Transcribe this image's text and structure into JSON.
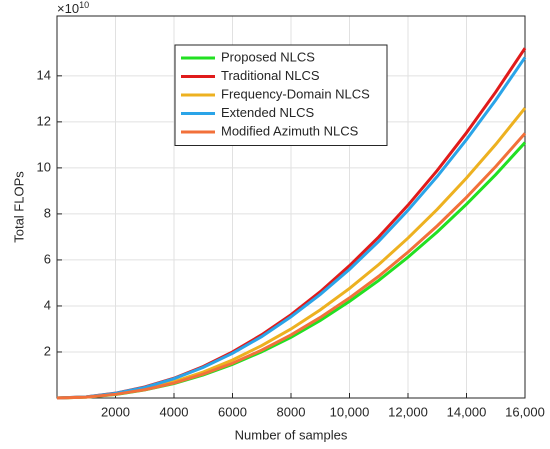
{
  "chart_data": {
    "type": "line",
    "y_multiplier": {
      "base": "×10",
      "exponent": "10"
    },
    "xlabel": "Number of samples",
    "ylabel": "Total FLOPs",
    "x": [
      0,
      1000,
      2000,
      3000,
      4000,
      5000,
      6000,
      7000,
      8000,
      9000,
      10000,
      11000,
      12000,
      13000,
      14000,
      15000,
      16000
    ],
    "series": [
      {
        "name": "Proposed NLCS",
        "color": "#22e022",
        "values": [
          0,
          0.04,
          0.15,
          0.35,
          0.63,
          1.0,
          1.46,
          2.01,
          2.64,
          3.37,
          4.2,
          5.11,
          6.12,
          7.22,
          8.42,
          9.71,
          11.1
        ]
      },
      {
        "name": "Traditional NLCS",
        "color": "#e01b1b",
        "values": [
          0,
          0.05,
          0.21,
          0.48,
          0.86,
          1.37,
          2.0,
          2.75,
          3.62,
          4.62,
          5.75,
          7.0,
          8.38,
          9.89,
          11.53,
          13.3,
          15.2
        ]
      },
      {
        "name": "Frequency-Domain NLCS",
        "color": "#edb120",
        "values": [
          0,
          0.04,
          0.17,
          0.39,
          0.71,
          1.13,
          1.65,
          2.28,
          3.0,
          3.83,
          4.76,
          5.8,
          6.95,
          8.2,
          9.56,
          11.02,
          12.6
        ]
      },
      {
        "name": "Extended NLCS",
        "color": "#2aa4e8",
        "values": [
          0,
          0.05,
          0.2,
          0.46,
          0.84,
          1.33,
          1.94,
          2.67,
          3.53,
          4.5,
          5.59,
          6.81,
          8.16,
          9.63,
          11.23,
          12.95,
          14.8
        ]
      },
      {
        "name": "Modified Azimuth NLCS",
        "color": "#f2703a",
        "values": [
          0,
          0.04,
          0.16,
          0.36,
          0.65,
          1.04,
          1.51,
          2.08,
          2.74,
          3.5,
          4.35,
          5.29,
          6.34,
          7.48,
          8.72,
          10.06,
          11.5
        ]
      }
    ],
    "xlim": [
      0,
      16000
    ],
    "xticks": [
      2000,
      4000,
      6000,
      8000,
      {
        "value": 10000,
        "label": "10,000"
      },
      {
        "value": 12000,
        "label": "12,000"
      },
      {
        "value": 14000,
        "label": "14,000"
      },
      {
        "value": 16000,
        "label": "16,000"
      }
    ],
    "ylim": [
      0,
      16.6
    ],
    "yticks": [
      2,
      4,
      6,
      8,
      10,
      12,
      14
    ],
    "grid": true,
    "legend": "top"
  }
}
